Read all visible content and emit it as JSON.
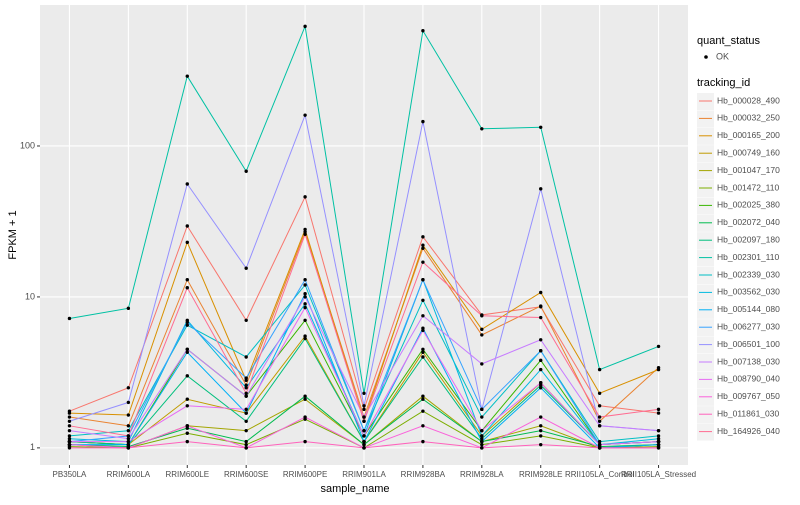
{
  "chart_data": {
    "type": "line",
    "x_label": "sample_name",
    "y_label": "FPKM + 1",
    "categories": [
      "PB350LA",
      "RRIM600LA",
      "RRIM600LE",
      "RRIM600SE",
      "RRIM600PE",
      "RRIM901LA",
      "RRIM928BA",
      "RRIM928LA",
      "RRIM928LE",
      "RRII105LA_Control",
      "RRII105LA_Stressed"
    ],
    "ylim": [
      0.77,
      859
    ],
    "yticks": [
      1,
      10,
      100
    ],
    "log_y": true,
    "grid": true,
    "shape_legend_title": "quant_status",
    "shape_legend_labels": [
      "OK"
    ],
    "legend_title": "tracking_id",
    "legend_position": "right",
    "series": [
      {
        "name": "Hb_000028_490",
        "color": "#F8766D",
        "values": [
          1.75,
          2.5,
          29.5,
          7.0,
          46,
          1.8,
          25,
          7.6,
          8.6,
          1.9,
          1.7
        ]
      },
      {
        "name": "Hb_000032_250",
        "color": "#EA8331",
        "values": [
          1.6,
          1.4,
          13,
          2.6,
          27,
          1.6,
          21,
          5.6,
          8.7,
          1.5,
          3.4
        ]
      },
      {
        "name": "Hb_000165_200",
        "color": "#D89000",
        "values": [
          1.7,
          1.65,
          23,
          2.8,
          28,
          1.5,
          22,
          6.1,
          10.7,
          2.3,
          3.3
        ]
      },
      {
        "name": "Hb_000749_160",
        "color": "#C09B00",
        "values": [
          1.1,
          1.05,
          2.1,
          1.7,
          5.5,
          1.1,
          4.3,
          1.2,
          2.7,
          1.05,
          1.1
        ]
      },
      {
        "name": "Hb_001047_170",
        "color": "#A3A500",
        "values": [
          1.05,
          1.0,
          1.4,
          1.3,
          2.1,
          1.05,
          2.2,
          1.1,
          1.4,
          1.0,
          1.05
        ]
      },
      {
        "name": "Hb_001472_110",
        "color": "#7CAE00",
        "values": [
          1.02,
          1.0,
          1.25,
          1.05,
          1.55,
          1.0,
          1.75,
          1.05,
          1.2,
          1.0,
          1.02
        ]
      },
      {
        "name": "Hb_002025_380",
        "color": "#39B600",
        "values": [
          1.1,
          1.05,
          4.5,
          2.2,
          7,
          1.2,
          4.5,
          1.3,
          3.8,
          1.05,
          1.1
        ]
      },
      {
        "name": "Hb_002072_040",
        "color": "#00BB4E",
        "values": [
          1.05,
          1.02,
          1.35,
          1.1,
          2.2,
          1.05,
          2.1,
          1.1,
          1.3,
          1.02,
          1.05
        ]
      },
      {
        "name": "Hb_002097_180",
        "color": "#00BF7D",
        "values": [
          1.1,
          1.05,
          3.0,
          1.5,
          5.3,
          1.1,
          4.0,
          1.15,
          2.6,
          1.05,
          1.1
        ]
      },
      {
        "name": "Hb_002301_110",
        "color": "#00C1A3",
        "values": [
          7.2,
          8.4,
          290,
          68,
          620,
          2.3,
          580,
          130,
          133,
          3.3,
          4.7
        ]
      },
      {
        "name": "Hb_002339_030",
        "color": "#00BFC4",
        "values": [
          1.2,
          1.3,
          6.5,
          4.0,
          12,
          1.3,
          9.5,
          1.6,
          4.4,
          1.1,
          1.2
        ]
      },
      {
        "name": "Hb_003562_030",
        "color": "#00BAE0",
        "values": [
          1.15,
          1.1,
          7,
          2.5,
          9,
          1.2,
          13,
          1.2,
          3.3,
          1.05,
          1.15
        ]
      },
      {
        "name": "Hb_005144_080",
        "color": "#00B0F6",
        "values": [
          1.05,
          1.05,
          4.3,
          1.7,
          10.5,
          1.1,
          6.2,
          1.1,
          2.5,
          1.0,
          1.05
        ]
      },
      {
        "name": "Hb_006277_030",
        "color": "#35A2FF",
        "values": [
          1.1,
          1.2,
          6.8,
          2.9,
          13,
          1.3,
          13,
          1.8,
          4.4,
          1.05,
          1.1
        ]
      },
      {
        "name": "Hb_006501_100",
        "color": "#9590FF",
        "values": [
          1.5,
          2.0,
          56,
          15.5,
          160,
          1.9,
          145,
          1.8,
          52,
          1.4,
          1.3
        ]
      },
      {
        "name": "Hb_007138_030",
        "color": "#C77CFF",
        "values": [
          1.3,
          1.15,
          4.5,
          2.2,
          10,
          1.6,
          7.5,
          3.6,
          5.2,
          1.4,
          1.3
        ]
      },
      {
        "name": "Hb_008790_040",
        "color": "#E76BF3",
        "values": [
          1.1,
          1.1,
          1.9,
          1.8,
          8.5,
          1.2,
          6,
          1.3,
          2.7,
          1.05,
          1.1
        ]
      },
      {
        "name": "Hb_009767_050",
        "color": "#FA62DB",
        "values": [
          1.05,
          1.0,
          1.4,
          1.0,
          1.6,
          1.0,
          1.4,
          1.0,
          1.6,
          1.0,
          1.0
        ]
      },
      {
        "name": "Hb_011861_030",
        "color": "#FF62BC",
        "values": [
          1.0,
          1.0,
          1.1,
          1.0,
          1.1,
          1.0,
          1.1,
          1.0,
          1.05,
          1.0,
          1.0
        ]
      },
      {
        "name": "Hb_164926_040",
        "color": "#FF6C91",
        "values": [
          1.4,
          1.2,
          11.5,
          2.3,
          26,
          1.5,
          17,
          7.5,
          7.3,
          1.6,
          1.8
        ]
      }
    ]
  }
}
